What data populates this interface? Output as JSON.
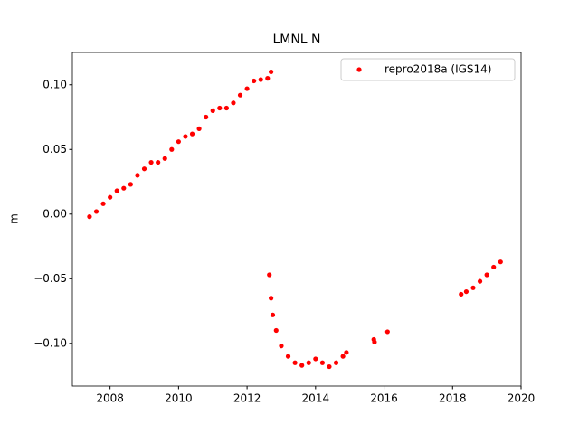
{
  "chart_data": {
    "type": "scatter",
    "title": "LMNL N",
    "y_label": "m",
    "x": [
      2007.4,
      2007.6,
      2007.8,
      2008.0,
      2008.2,
      2008.4,
      2008.6,
      2008.8,
      2009.0,
      2009.2,
      2009.4,
      2009.6,
      2009.8,
      2010.0,
      2010.2,
      2010.4,
      2010.6,
      2010.8,
      2011.0,
      2011.2,
      2011.4,
      2011.6,
      2011.8,
      2012.0,
      2012.2,
      2012.4,
      2012.6,
      2012.7,
      2012.65,
      2012.7,
      2012.75,
      2012.85,
      2013.0,
      2013.2,
      2013.4,
      2013.6,
      2013.8,
      2014.0,
      2014.2,
      2014.4,
      2014.6,
      2014.8,
      2014.9,
      2015.7,
      2015.72,
      2016.1,
      2018.25,
      2018.4,
      2018.6,
      2018.8,
      2019.0,
      2019.2,
      2019.4
    ],
    "series": [
      {
        "name": "repro2018a (IGS14)",
        "color": "#ff0000",
        "values": [
          -0.002,
          0.002,
          0.008,
          0.013,
          0.018,
          0.02,
          0.023,
          0.03,
          0.035,
          0.04,
          0.04,
          0.043,
          0.05,
          0.056,
          0.06,
          0.062,
          0.066,
          0.075,
          0.08,
          0.082,
          0.082,
          0.086,
          0.092,
          0.097,
          0.103,
          0.104,
          0.105,
          0.11,
          -0.047,
          -0.065,
          -0.078,
          -0.09,
          -0.102,
          -0.11,
          -0.115,
          -0.117,
          -0.115,
          -0.112,
          -0.115,
          -0.118,
          -0.115,
          -0.11,
          -0.107,
          -0.097,
          -0.099,
          -0.091,
          -0.062,
          -0.06,
          -0.057,
          -0.052,
          -0.047,
          -0.041,
          -0.037
        ]
      }
    ],
    "xlim": [
      2006.9,
      2020.0
    ],
    "ylim": [
      -0.133,
      0.125
    ],
    "xticks": [
      2008,
      2010,
      2012,
      2014,
      2016,
      2018,
      2020
    ],
    "yticks": [
      {
        "value": -0.1,
        "label": "−0.10"
      },
      {
        "value": -0.05,
        "label": "−0.05"
      },
      {
        "value": 0,
        "label": "0.00"
      },
      {
        "value": 0.05,
        "label": "0.05"
      },
      {
        "value": 0.1,
        "label": "0.10"
      }
    ],
    "legend": "upper right"
  }
}
